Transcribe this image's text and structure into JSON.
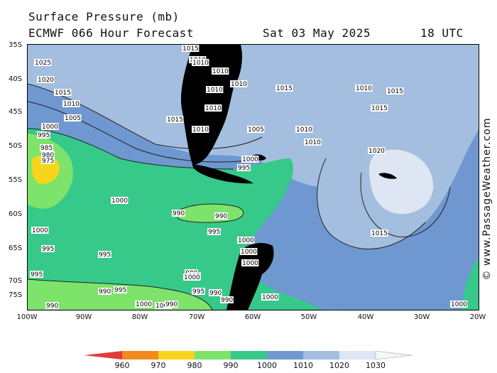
{
  "header": {
    "title": "Surface Pressure (mb)",
    "model": "ECMWF 066 Hour Forecast",
    "date": "Sat 03 May 2025",
    "time": "18 UTC"
  },
  "axes": {
    "lat_labels": [
      "35S",
      "40S",
      "45S",
      "50S",
      "55S",
      "60S",
      "65S",
      "70S",
      "75S"
    ],
    "lon_labels": [
      "100W",
      "90W",
      "80W",
      "70W",
      "60W",
      "50W",
      "40W",
      "30W",
      "20W"
    ]
  },
  "legend": {
    "ticks": [
      "960",
      "970",
      "980",
      "990",
      "1000",
      "1010",
      "1020",
      "1030"
    ],
    "colors": [
      "#e23b3b",
      "#f08a1c",
      "#f7d51d",
      "#7de36b",
      "#36c98a",
      "#6f97d0",
      "#a4bedf",
      "#dde6f2"
    ]
  },
  "credit": "© www.PassageWeather.com",
  "map": {
    "region": "South Atlantic / Southern Ocean",
    "lat_range": [
      "35S",
      "77S"
    ],
    "lon_range": [
      "100W",
      "20W"
    ],
    "colors": {
      "land": "#000000",
      "band_990_1000": "#36c98a",
      "band_980_990": "#7de36b",
      "band_1000_1010": "#6f97d0",
      "band_1010_1020": "#a4bedf",
      "band_1020_1030": "#dde6f2",
      "band_970_980": "#f7d51d"
    },
    "isobar_labels": [
      "1025",
      "1020",
      "1015",
      "1010",
      "1005",
      "1000",
      "995",
      "985",
      "980",
      "975",
      "1015",
      "1010",
      "1010",
      "1010",
      "1010",
      "1010",
      "1010",
      "1015",
      "1015",
      "1010",
      "1005",
      "1000",
      "995",
      "1010",
      "1010",
      "1015",
      "1010",
      "1015",
      "1020",
      "1015",
      "1000",
      "990",
      "990",
      "995",
      "1000",
      "1000",
      "1000",
      "995",
      "995",
      "995",
      "990",
      "990",
      "1000",
      "1000",
      "995",
      "995",
      "990",
      "980",
      "985",
      "990",
      "990",
      "1000",
      "1000",
      "995",
      "1000",
      "1000"
    ]
  }
}
